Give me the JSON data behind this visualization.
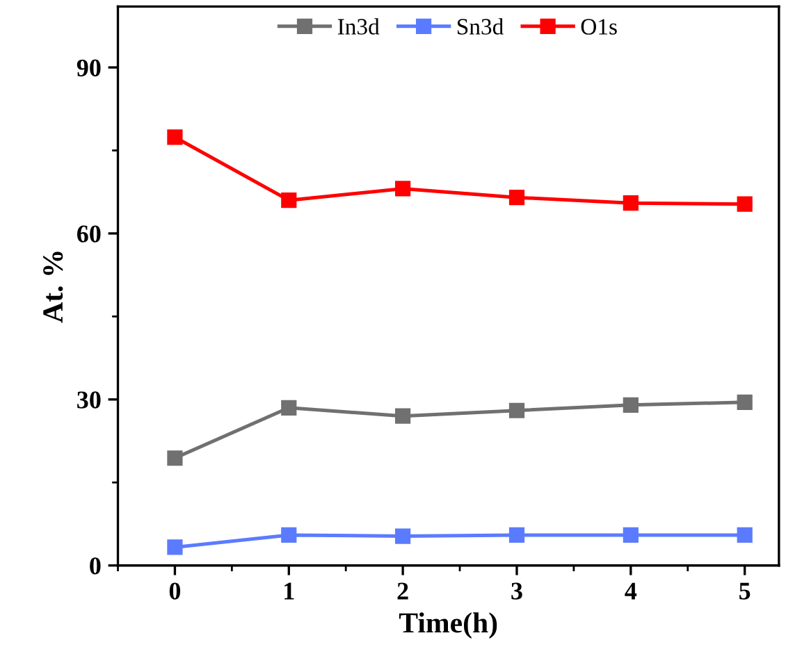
{
  "chart_data": {
    "type": "line",
    "xlabel": "Time(h)",
    "ylabel": "At. %",
    "x": [
      0,
      1,
      2,
      3,
      4,
      5
    ],
    "series": [
      {
        "name": "In3d",
        "color": "#707070",
        "values": [
          19.4,
          28.5,
          27.0,
          28.0,
          29.0,
          29.5
        ]
      },
      {
        "name": "Sn3d",
        "color": "#5b7bff",
        "values": [
          3.3,
          5.5,
          5.3,
          5.5,
          5.5,
          5.5
        ]
      },
      {
        "name": "O1s",
        "color": "#ff0000",
        "values": [
          77.4,
          66.0,
          68.1,
          66.5,
          65.5,
          65.3
        ]
      }
    ],
    "xlim": [
      -0.5,
      5.3
    ],
    "xticks": [
      0,
      1,
      2,
      3,
      4,
      5
    ],
    "ylim": [
      0,
      101
    ],
    "yticks": [
      0,
      30,
      60,
      90
    ],
    "marker": "square",
    "line_style": "solid",
    "grid": false,
    "legend": "top"
  }
}
